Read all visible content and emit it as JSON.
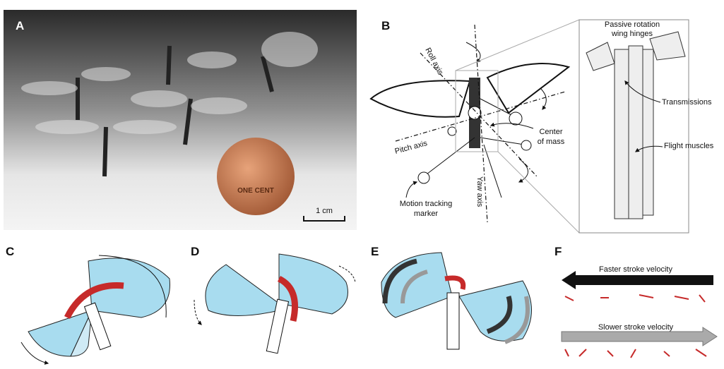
{
  "panels": {
    "A": {
      "label": "A",
      "scale_bar": "1 cm",
      "coin_text": "ONE CENT"
    },
    "B": {
      "label": "B",
      "roll_axis": "Roll axis",
      "pitch_axis": "Pitch axis",
      "yaw_axis": "Yaw axis",
      "center_of_mass": [
        "Center",
        "of mass"
      ],
      "motion_marker": [
        "Motion tracking",
        "marker"
      ],
      "hinges": [
        "Passive rotation",
        "wing hinges"
      ],
      "transmissions": "Transmissions",
      "flight_muscles": "Flight muscles"
    },
    "C": {
      "label": "C"
    },
    "D": {
      "label": "D"
    },
    "E": {
      "label": "E"
    },
    "F": {
      "label": "F",
      "faster": "Faster stroke velocity",
      "slower": "Slower stroke velocity"
    }
  }
}
